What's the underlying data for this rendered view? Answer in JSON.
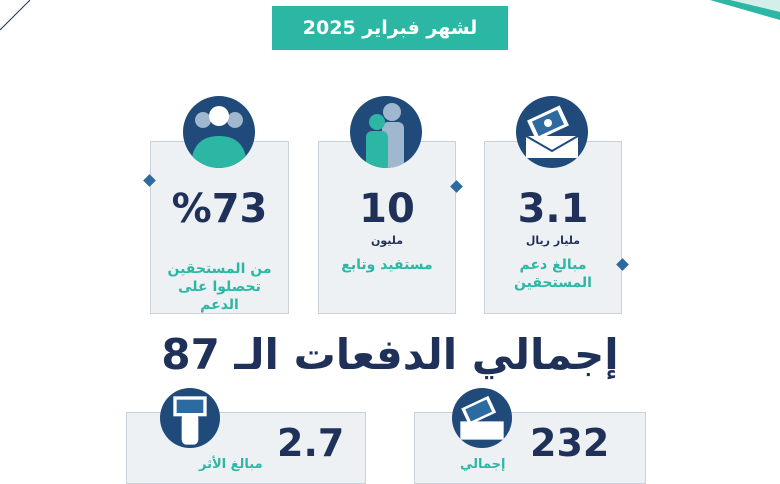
{
  "header": {
    "month_label": "لشهر فبراير 2025"
  },
  "stats": [
    {
      "value": "3.1",
      "unit": "مليار ريال",
      "description": "مبالغ دعم المستحقين",
      "icon": "money-envelope-icon"
    },
    {
      "value": "10",
      "unit": "مليون",
      "description": "مستفيد وتابع",
      "icon": "beneficiaries-icon"
    },
    {
      "value": "%73",
      "unit": "",
      "description": "من المستحقين تحصلوا على الدعم",
      "icon": "group-icon"
    }
  ],
  "section_title": "إجمالي الدفعات الـ 87",
  "bottom_stats": [
    {
      "value": "232",
      "description": "إجمالي",
      "icon": "money-envelope-icon"
    },
    {
      "value": "2.7",
      "description": "مبالغ الأثر",
      "icon": "hand-money-icon"
    }
  ],
  "colors": {
    "teal": "#2bb7a4",
    "navy": "#1f3158",
    "card_bg": "#eef1f4"
  }
}
